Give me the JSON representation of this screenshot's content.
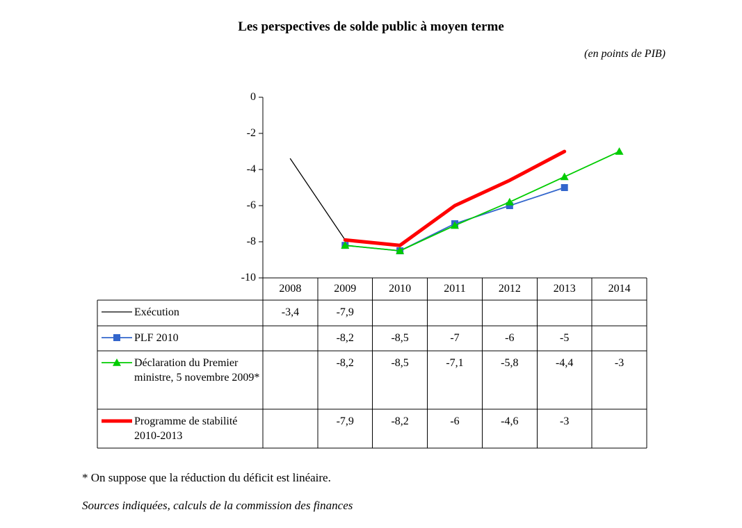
{
  "title": "Les perspectives de solde public à moyen terme",
  "subtitle": "(en points de PIB)",
  "footnote": "* On suppose que la réduction du déficit est linéaire.",
  "source_note": "Sources indiquées, calculs de la commission des finances",
  "chart_data": {
    "type": "line",
    "title": "Les perspectives de solde public à moyen terme",
    "unit": "en points de PIB",
    "categories": [
      "2008",
      "2009",
      "2010",
      "2011",
      "2012",
      "2013",
      "2014"
    ],
    "ylim": [
      -10,
      0
    ],
    "yticks": [
      0,
      -2,
      -4,
      -6,
      -8,
      -10
    ],
    "ytick_labels": [
      "0",
      "-2",
      "-4",
      "-6",
      "-8",
      "-10"
    ],
    "grid": false,
    "legend_position": "table-left",
    "series": [
      {
        "name": "Exécution",
        "color": "#000000",
        "line_width": 1.3,
        "marker": "none",
        "values": [
          -3.4,
          -7.9,
          null,
          null,
          null,
          null,
          null
        ],
        "value_labels": [
          "-3,4",
          "-7,9",
          "",
          "",
          "",
          "",
          ""
        ]
      },
      {
        "name": "PLF 2010",
        "color": "#3366cc",
        "line_width": 1.8,
        "marker": "square",
        "values": [
          null,
          -8.2,
          -8.5,
          -7,
          -6,
          -5,
          null
        ],
        "value_labels": [
          "",
          "-8,2",
          "-8,5",
          "-7",
          "-6",
          "-5",
          ""
        ]
      },
      {
        "name": "Déclaration du Premier ministre, 5 novembre 2009*",
        "color": "#00cc00",
        "line_width": 1.8,
        "marker": "triangle",
        "values": [
          null,
          -8.2,
          -8.5,
          -7.1,
          -5.8,
          -4.4,
          -3
        ],
        "value_labels": [
          "",
          "-8,2",
          "-8,5",
          "-7,1",
          "-5,8",
          "-4,4",
          "-3"
        ]
      },
      {
        "name": "Programme de stabilité 2010-2013",
        "color": "#ff0000",
        "line_width": 5,
        "marker": "none",
        "values": [
          null,
          -7.9,
          -8.2,
          -6,
          -4.6,
          -3,
          null
        ],
        "value_labels": [
          "",
          "-7,9",
          "-8,2",
          "-6",
          "-4,6",
          "-3",
          ""
        ]
      }
    ]
  }
}
